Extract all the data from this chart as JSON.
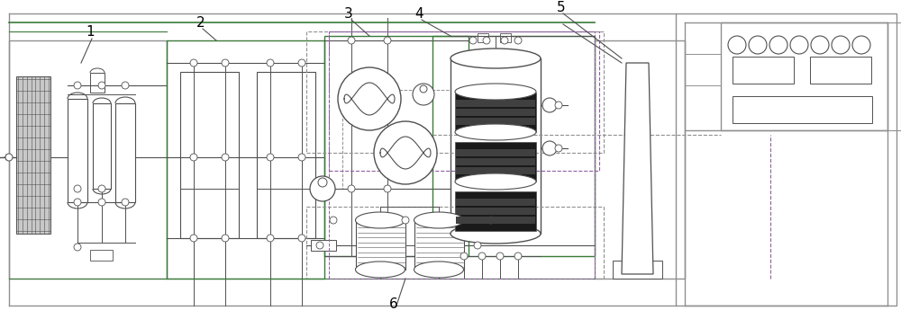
{
  "fig_width": 10.0,
  "fig_height": 3.65,
  "dpi": 100,
  "bg_color": "#ffffff",
  "lc": "#909090",
  "dc": "#505050",
  "gc": "#3a7a3a",
  "pc": "#9060a0",
  "dsc": "#909090"
}
